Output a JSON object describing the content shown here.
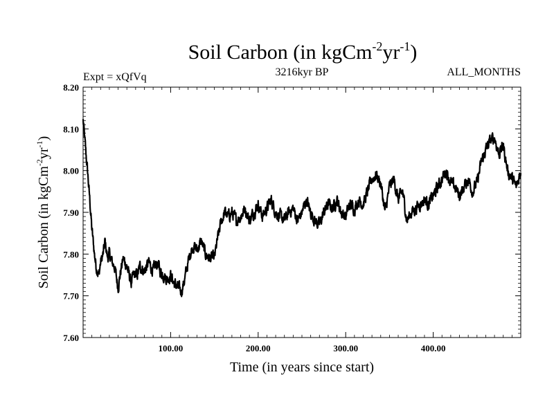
{
  "chart_data": {
    "type": "line",
    "title": "Soil Carbon (in kgCm-2yr-1)",
    "title_parts": {
      "base": "Soil Carbon (in kgCm",
      "exp1": "-2",
      "mid": "yr",
      "exp2": "-1",
      "end": ")"
    },
    "subtitle_left": "Expt = xQfVq",
    "subtitle_center": "3216kyr BP",
    "subtitle_right": "ALL_MONTHS",
    "xlabel": "Time (in years since start)",
    "ylabel": "Soil Carbon (in kgCm-2yr-1)",
    "ylabel_parts": {
      "base": "Soil Carbon (in kgCm",
      "exp1": "-2",
      "mid": "yr",
      "exp2": "-1",
      "end": ")"
    },
    "xlim": [
      0,
      500
    ],
    "ylim": [
      7.6,
      8.2
    ],
    "x_ticks": [
      100,
      200,
      300,
      400
    ],
    "x_tick_labels": [
      "100.00",
      "200.00",
      "300.00",
      "400.00"
    ],
    "y_ticks": [
      7.6,
      7.7,
      7.8,
      7.9,
      8.0,
      8.1,
      8.2
    ],
    "y_tick_labels": [
      "7.60",
      "7.70",
      "7.80",
      "7.90",
      "8.00",
      "8.10",
      "8.20"
    ],
    "grid": false,
    "series": [
      {
        "name": "Soil Carbon",
        "x": [
          0,
          2,
          5,
          8,
          10,
          13,
          15,
          18,
          20,
          23,
          25,
          28,
          30,
          33,
          36,
          40,
          43,
          46,
          50,
          55,
          58,
          62,
          65,
          70,
          75,
          80,
          85,
          88,
          92,
          96,
          100,
          104,
          108,
          112,
          115,
          118,
          122,
          126,
          130,
          135,
          140,
          145,
          150,
          154,
          158,
          162,
          166,
          170,
          175,
          180,
          185,
          190,
          195,
          200,
          205,
          210,
          215,
          220,
          225,
          230,
          235,
          240,
          245,
          250,
          255,
          260,
          265,
          270,
          275,
          280,
          285,
          290,
          295,
          300,
          305,
          310,
          315,
          320,
          325,
          330,
          335,
          340,
          345,
          350,
          355,
          360,
          365,
          370,
          375,
          380,
          385,
          390,
          395,
          400,
          405,
          410,
          415,
          420,
          425,
          430,
          435,
          440,
          445,
          450,
          455,
          460,
          465,
          470,
          475,
          480,
          485,
          490,
          495,
          500
        ],
        "values": [
          8.12,
          8.07,
          8.0,
          7.92,
          7.86,
          7.8,
          7.77,
          7.75,
          7.78,
          7.8,
          7.83,
          7.79,
          7.8,
          7.78,
          7.77,
          7.72,
          7.76,
          7.79,
          7.77,
          7.73,
          7.75,
          7.75,
          7.77,
          7.76,
          7.78,
          7.76,
          7.78,
          7.76,
          7.75,
          7.74,
          7.75,
          7.73,
          7.72,
          7.71,
          7.73,
          7.76,
          7.8,
          7.82,
          7.81,
          7.83,
          7.8,
          7.79,
          7.79,
          7.84,
          7.88,
          7.9,
          7.89,
          7.9,
          7.88,
          7.89,
          7.91,
          7.88,
          7.9,
          7.92,
          7.89,
          7.91,
          7.93,
          7.9,
          7.89,
          7.88,
          7.9,
          7.91,
          7.88,
          7.9,
          7.93,
          7.9,
          7.88,
          7.87,
          7.9,
          7.92,
          7.91,
          7.93,
          7.9,
          7.89,
          7.92,
          7.91,
          7.93,
          7.92,
          7.95,
          7.98,
          7.99,
          7.97,
          7.9,
          7.96,
          7.98,
          7.93,
          7.95,
          7.88,
          7.9,
          7.91,
          7.92,
          7.93,
          7.92,
          7.94,
          7.96,
          7.98,
          8.0,
          7.97,
          7.96,
          7.94,
          7.96,
          7.98,
          7.95,
          7.97,
          8.02,
          8.05,
          8.07,
          8.08,
          8.04,
          8.06,
          8.0,
          7.98,
          7.96,
          8.0
        ]
      }
    ]
  }
}
